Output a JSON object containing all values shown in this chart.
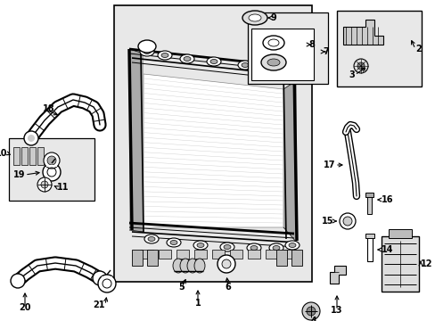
{
  "bg_color": "#ffffff",
  "gray_fill": "#e8e8e8",
  "mid_gray": "#cccccc",
  "dark": "#333333",
  "figsize": [
    4.89,
    3.6
  ],
  "dpi": 100
}
